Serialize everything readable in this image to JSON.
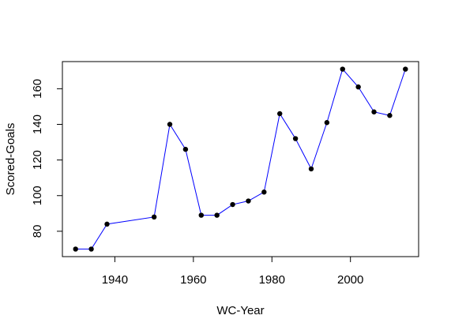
{
  "chart_data": {
    "type": "line",
    "title": "",
    "xlabel": "WC-Year",
    "ylabel": "Scored-Goals",
    "xlim": [
      1926.64,
      2017.36
    ],
    "ylim": [
      65.76,
      175.24
    ],
    "x_ticks": [
      1940,
      1960,
      1980,
      2000
    ],
    "y_ticks": [
      80,
      100,
      120,
      140,
      160
    ],
    "grid": false,
    "legend": "none",
    "line_color": "#0000ff",
    "point_color": "#000000",
    "series": [
      {
        "x": [
          1930,
          1934,
          1938,
          1950,
          1954,
          1958,
          1962,
          1966,
          1970,
          1974,
          1978,
          1982,
          1986,
          1990,
          1994,
          1998,
          2002,
          2006,
          2010,
          2014
        ],
        "values": [
          70,
          70,
          84,
          88,
          140,
          126,
          89,
          89,
          95,
          97,
          102,
          146,
          132,
          115,
          141,
          171,
          161,
          147,
          145,
          171
        ]
      }
    ]
  }
}
